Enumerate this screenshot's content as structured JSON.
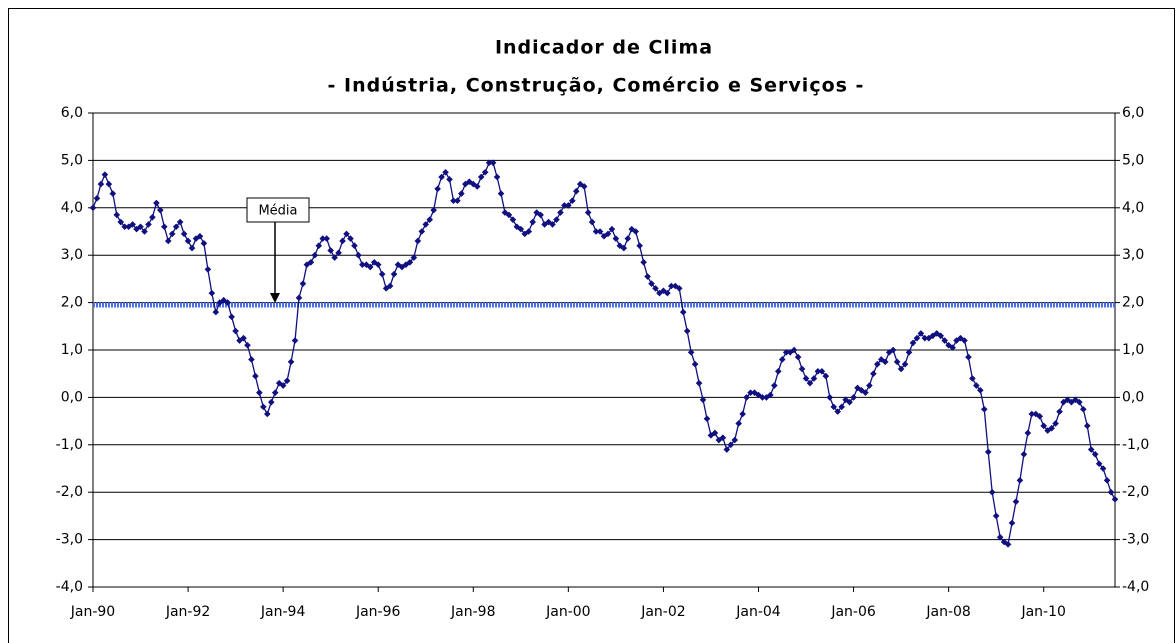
{
  "chart_data": {
    "type": "line",
    "title": "Indicador de Clima",
    "subtitle": "- Indústria, Construção, Comércio e Serviços -",
    "categories": [
      "Jan-90",
      null,
      null,
      null,
      null,
      null,
      null,
      null,
      null,
      null,
      null,
      null,
      null,
      null,
      null,
      null,
      null,
      null,
      null,
      null,
      null,
      null,
      null,
      null,
      "Jan-92",
      null,
      null,
      null,
      null,
      null,
      null,
      null,
      null,
      null,
      null,
      null,
      null,
      null,
      null,
      null,
      null,
      null,
      null,
      null,
      null,
      null,
      null,
      null,
      "Jan-94",
      null,
      null,
      null,
      null,
      null,
      null,
      null,
      null,
      null,
      null,
      null,
      null,
      null,
      null,
      null,
      null,
      null,
      null,
      null,
      null,
      null,
      null,
      null,
      "Jan-96",
      null,
      null,
      null,
      null,
      null,
      null,
      null,
      null,
      null,
      null,
      null,
      null,
      null,
      null,
      null,
      null,
      null,
      null,
      null,
      null,
      null,
      null,
      null,
      "Jan-98",
      null,
      null,
      null,
      null,
      null,
      null,
      null,
      null,
      null,
      null,
      null,
      null,
      null,
      null,
      null,
      null,
      null,
      null,
      null,
      null,
      null,
      null,
      null,
      "Jan-00",
      null,
      null,
      null,
      null,
      null,
      null,
      null,
      null,
      null,
      null,
      null,
      null,
      null,
      null,
      null,
      null,
      null,
      null,
      null,
      null,
      null,
      null,
      null,
      "Jan-02",
      null,
      null,
      null,
      null,
      null,
      null,
      null,
      null,
      null,
      null,
      null,
      null,
      null,
      null,
      null,
      null,
      null,
      null,
      null,
      null,
      null,
      null,
      null,
      "Jan-04",
      null,
      null,
      null,
      null,
      null,
      null,
      null,
      null,
      null,
      null,
      null,
      null,
      null,
      null,
      null,
      null,
      null,
      null,
      null,
      null,
      null,
      null,
      null,
      "Jan-06",
      null,
      null,
      null,
      null,
      null,
      null,
      null,
      null,
      null,
      null,
      null,
      null,
      null,
      null,
      null,
      null,
      null,
      null,
      null,
      null,
      null,
      null,
      null,
      "Jan-08",
      null,
      null,
      null,
      null,
      null,
      null,
      null,
      null,
      null,
      null,
      null,
      null,
      null,
      null,
      null,
      null,
      null,
      null,
      null,
      null,
      null,
      null,
      null,
      "Jan-10",
      null,
      null,
      null,
      null,
      null,
      null,
      null,
      null,
      null,
      null,
      null,
      null,
      null,
      null,
      null,
      null,
      null,
      null
    ],
    "series": [
      {
        "color": "#101080",
        "values": [
          4.0,
          4.2,
          4.5,
          4.7,
          4.5,
          4.3,
          3.85,
          3.7,
          3.6,
          3.6,
          3.65,
          3.55,
          3.6,
          3.5,
          3.65,
          3.8,
          4.1,
          3.95,
          3.6,
          3.3,
          3.45,
          3.6,
          3.7,
          3.45,
          3.3,
          3.15,
          3.35,
          3.4,
          3.25,
          2.7,
          2.2,
          1.8,
          2.0,
          2.05,
          2.0,
          1.7,
          1.4,
          1.2,
          1.25,
          1.1,
          0.8,
          0.45,
          0.1,
          -0.2,
          -0.35,
          -0.1,
          0.1,
          0.3,
          0.25,
          0.35,
          0.75,
          1.2,
          2.1,
          2.4,
          2.8,
          2.85,
          3.0,
          3.2,
          3.35,
          3.35,
          3.1,
          2.95,
          3.05,
          3.3,
          3.45,
          3.35,
          3.2,
          3.0,
          2.8,
          2.8,
          2.75,
          2.85,
          2.8,
          2.6,
          2.3,
          2.35,
          2.6,
          2.8,
          2.75,
          2.8,
          2.85,
          2.95,
          3.3,
          3.5,
          3.65,
          3.75,
          3.95,
          4.4,
          4.65,
          4.75,
          4.6,
          4.15,
          4.15,
          4.3,
          4.5,
          4.55,
          4.5,
          4.45,
          4.65,
          4.75,
          4.95,
          4.95,
          4.65,
          4.3,
          3.9,
          3.85,
          3.75,
          3.6,
          3.55,
          3.45,
          3.5,
          3.7,
          3.9,
          3.85,
          3.65,
          3.7,
          3.65,
          3.75,
          3.9,
          4.05,
          4.05,
          4.15,
          4.35,
          4.5,
          4.45,
          3.9,
          3.7,
          3.5,
          3.5,
          3.4,
          3.45,
          3.55,
          3.35,
          3.2,
          3.15,
          3.35,
          3.55,
          3.5,
          3.2,
          2.85,
          2.55,
          2.4,
          2.3,
          2.2,
          2.25,
          2.2,
          2.35,
          2.35,
          2.3,
          1.8,
          1.4,
          0.95,
          0.7,
          0.3,
          -0.05,
          -0.45,
          -0.8,
          -0.75,
          -0.9,
          -0.85,
          -1.1,
          -1.0,
          -0.9,
          -0.55,
          -0.35,
          0.0,
          0.1,
          0.1,
          0.05,
          0.0,
          0.0,
          0.05,
          0.25,
          0.55,
          0.8,
          0.95,
          0.95,
          1.0,
          0.85,
          0.6,
          0.4,
          0.3,
          0.4,
          0.55,
          0.55,
          0.45,
          0.0,
          -0.2,
          -0.3,
          -0.2,
          -0.05,
          -0.1,
          0.0,
          0.2,
          0.15,
          0.1,
          0.25,
          0.5,
          0.7,
          0.8,
          0.75,
          0.95,
          1.0,
          0.75,
          0.6,
          0.7,
          0.95,
          1.15,
          1.25,
          1.35,
          1.25,
          1.25,
          1.3,
          1.35,
          1.3,
          1.2,
          1.1,
          1.05,
          1.2,
          1.25,
          1.2,
          0.85,
          0.4,
          0.25,
          0.15,
          -0.25,
          -1.15,
          -2.0,
          -2.5,
          -2.95,
          -3.05,
          -3.1,
          -2.65,
          -2.2,
          -1.75,
          -1.2,
          -0.75,
          -0.35,
          -0.35,
          -0.4,
          -0.6,
          -0.7,
          -0.65,
          -0.55,
          -0.3,
          -0.1,
          -0.05,
          -0.1,
          -0.05,
          -0.1,
          -0.25,
          -0.6,
          -1.1,
          -1.2,
          -1.4,
          -1.5,
          -1.75,
          -2.0,
          -2.15
        ]
      }
    ],
    "reference_line": {
      "label": "Média",
      "value": 1.95,
      "color": "#4a6fe8"
    },
    "ylim": [
      -4,
      6
    ],
    "yticks": [
      {
        "value": -4,
        "label": "-4,0"
      },
      {
        "value": -3,
        "label": "-3,0"
      },
      {
        "value": -2,
        "label": "-2,0"
      },
      {
        "value": -1,
        "label": "-1,0"
      },
      {
        "value": 0,
        "label": "0,0"
      },
      {
        "value": 1,
        "label": "1,0"
      },
      {
        "value": 2,
        "label": "2,0"
      },
      {
        "value": 3,
        "label": "3,0"
      },
      {
        "value": 4,
        "label": "4,0"
      },
      {
        "value": 5,
        "label": "5,0"
      },
      {
        "value": 6,
        "label": "6,0"
      }
    ],
    "y2lim": [
      -4,
      6
    ],
    "y2ticks": [
      {
        "value": -4,
        "label": "-4,0"
      },
      {
        "value": -3,
        "label": "-3,0"
      },
      {
        "value": -2,
        "label": "-2,0"
      },
      {
        "value": -1,
        "label": "-1,0"
      },
      {
        "value": 0,
        "label": "0,0"
      },
      {
        "value": 1,
        "label": "1,0"
      },
      {
        "value": 2,
        "label": "2,0"
      },
      {
        "value": 3,
        "label": "3,0"
      },
      {
        "value": 4,
        "label": "4,0"
      },
      {
        "value": 5,
        "label": "5,0"
      },
      {
        "value": 6,
        "label": "6,0"
      }
    ],
    "grid": true
  }
}
